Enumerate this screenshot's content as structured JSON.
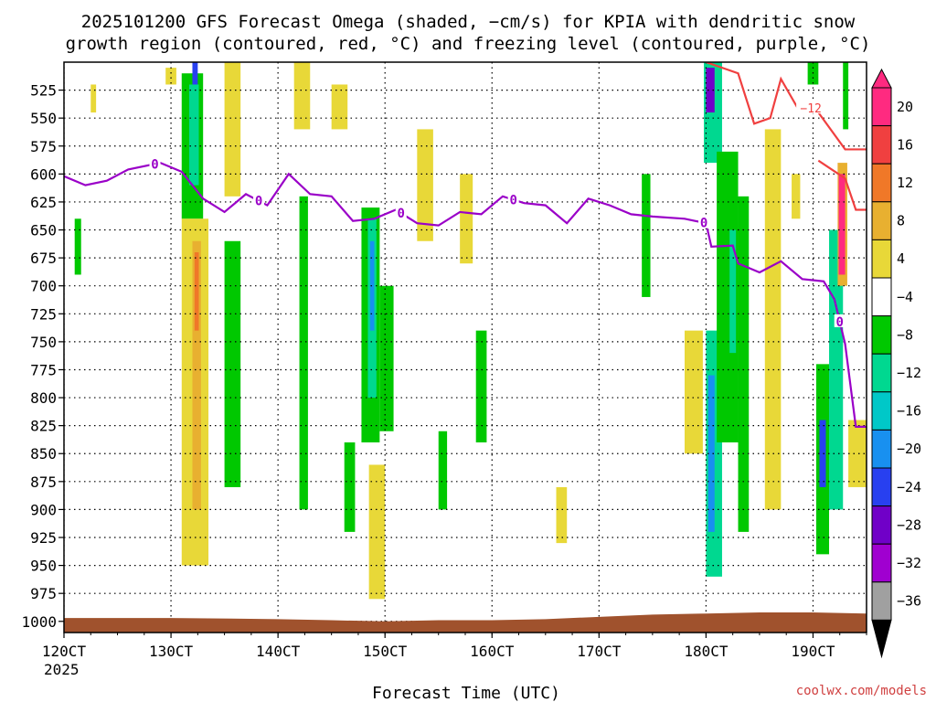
{
  "chart_data": {
    "type": "heatmap",
    "title_line1": "2025101200 GFS Forecast Omega (shaded, −cm/s) for KPIA with dendritic snow",
    "title_line2": "growth region (contoured, red, °C) and freezing level (contoured, purple, °C)",
    "xlabel": "Forecast Time (UTC)",
    "credit": "coolwx.com/models",
    "year_label": "2025",
    "x_ticks": [
      {
        "label": "120CT",
        "day": 12
      },
      {
        "label": "130CT",
        "day": 13
      },
      {
        "label": "140CT",
        "day": 14
      },
      {
        "label": "150CT",
        "day": 15
      },
      {
        "label": "160CT",
        "day": 16
      },
      {
        "label": "170CT",
        "day": 17
      },
      {
        "label": "180CT",
        "day": 18
      },
      {
        "label": "190CT",
        "day": 19
      }
    ],
    "xlim_days": [
      12,
      19.5
    ],
    "y_ticks": [
      525,
      550,
      575,
      600,
      625,
      650,
      675,
      700,
      725,
      750,
      775,
      800,
      825,
      850,
      875,
      900,
      925,
      950,
      975,
      1000
    ],
    "ylim_hpa": [
      1010,
      500
    ],
    "colorbar": {
      "labels": [
        "20",
        "16",
        "12",
        "8",
        "4",
        "−4",
        "−8",
        "−12",
        "−16",
        "−20",
        "−24",
        "−28",
        "−32",
        "−36"
      ],
      "colors": [
        "#ff2a80",
        "#f04040",
        "#f07828",
        "#e8b030",
        "#e8d838",
        "#ffffff",
        "#00c800",
        "#00d890",
        "#00c8c8",
        "#1890f0",
        "#2840f0",
        "#7000c8",
        "#a000d0",
        "#a0a0a0"
      ]
    },
    "freezing_level_label": "0",
    "freezing_level_series": [
      {
        "day": 12.0,
        "hpa": 602
      },
      {
        "day": 12.2,
        "hpa": 610
      },
      {
        "day": 12.4,
        "hpa": 606
      },
      {
        "day": 12.6,
        "hpa": 596
      },
      {
        "day": 12.9,
        "hpa": 590
      },
      {
        "day": 13.1,
        "hpa": 598
      },
      {
        "day": 13.3,
        "hpa": 622
      },
      {
        "day": 13.5,
        "hpa": 634
      },
      {
        "day": 13.7,
        "hpa": 618
      },
      {
        "day": 13.9,
        "hpa": 628
      },
      {
        "day": 14.1,
        "hpa": 600
      },
      {
        "day": 14.3,
        "hpa": 618
      },
      {
        "day": 14.5,
        "hpa": 620
      },
      {
        "day": 14.7,
        "hpa": 642
      },
      {
        "day": 14.9,
        "hpa": 640
      },
      {
        "day": 15.1,
        "hpa": 632
      },
      {
        "day": 15.3,
        "hpa": 644
      },
      {
        "day": 15.5,
        "hpa": 646
      },
      {
        "day": 15.7,
        "hpa": 634
      },
      {
        "day": 15.9,
        "hpa": 636
      },
      {
        "day": 16.1,
        "hpa": 620
      },
      {
        "day": 16.3,
        "hpa": 626
      },
      {
        "day": 16.5,
        "hpa": 628
      },
      {
        "day": 16.7,
        "hpa": 644
      },
      {
        "day": 16.9,
        "hpa": 622
      },
      {
        "day": 17.1,
        "hpa": 628
      },
      {
        "day": 17.3,
        "hpa": 636
      },
      {
        "day": 17.5,
        "hpa": 638
      },
      {
        "day": 17.8,
        "hpa": 640
      },
      {
        "day": 18.0,
        "hpa": 644
      },
      {
        "day": 18.05,
        "hpa": 665
      },
      {
        "day": 18.25,
        "hpa": 664
      },
      {
        "day": 18.3,
        "hpa": 680
      },
      {
        "day": 18.5,
        "hpa": 688
      },
      {
        "day": 18.7,
        "hpa": 678
      },
      {
        "day": 18.9,
        "hpa": 694
      },
      {
        "day": 19.1,
        "hpa": 696
      },
      {
        "day": 19.2,
        "hpa": 712
      },
      {
        "day": 19.3,
        "hpa": 752
      },
      {
        "day": 19.4,
        "hpa": 826
      },
      {
        "day": 19.5,
        "hpa": 826
      }
    ],
    "dgz_label": "−12",
    "dgz_upper_series": [
      {
        "day": 18.0,
        "hpa": 500
      },
      {
        "day": 18.3,
        "hpa": 510
      },
      {
        "day": 18.45,
        "hpa": 555
      },
      {
        "day": 18.6,
        "hpa": 550
      },
      {
        "day": 18.7,
        "hpa": 515
      },
      {
        "day": 18.85,
        "hpa": 540
      },
      {
        "day": 19.05,
        "hpa": 545
      },
      {
        "day": 19.3,
        "hpa": 578
      },
      {
        "day": 19.5,
        "hpa": 578
      }
    ],
    "dgz_lower_series": [
      {
        "day": 19.05,
        "hpa": 588
      },
      {
        "day": 19.3,
        "hpa": 604
      },
      {
        "day": 19.4,
        "hpa": 632
      },
      {
        "day": 19.5,
        "hpa": 632
      }
    ],
    "omega_cells": [
      {
        "d0": 12.1,
        "d1": 12.16,
        "p0": 640,
        "p1": 690,
        "c": "#00c800"
      },
      {
        "d0": 12.25,
        "d1": 12.3,
        "p0": 520,
        "p1": 545,
        "c": "#e8d838"
      },
      {
        "d0": 12.95,
        "d1": 13.05,
        "p0": 505,
        "p1": 520,
        "c": "#e8d838"
      },
      {
        "d0": 13.1,
        "d1": 13.3,
        "p0": 510,
        "p1": 640,
        "c": "#00c800"
      },
      {
        "d0": 13.17,
        "d1": 13.26,
        "p0": 520,
        "p1": 610,
        "c": "#00d890"
      },
      {
        "d0": 13.2,
        "d1": 13.25,
        "p0": 500,
        "p1": 520,
        "c": "#2840f0"
      },
      {
        "d0": 13.1,
        "d1": 13.35,
        "p0": 640,
        "p1": 950,
        "c": "#e8d838"
      },
      {
        "d0": 13.2,
        "d1": 13.28,
        "p0": 660,
        "p1": 900,
        "c": "#e8b030"
      },
      {
        "d0": 13.22,
        "d1": 13.26,
        "p0": 670,
        "p1": 740,
        "c": "#f07828"
      },
      {
        "d0": 13.5,
        "d1": 13.65,
        "p0": 500,
        "p1": 620,
        "c": "#e8d838"
      },
      {
        "d0": 13.5,
        "d1": 13.65,
        "p0": 660,
        "p1": 880,
        "c": "#00c800"
      },
      {
        "d0": 14.15,
        "d1": 14.3,
        "p0": 500,
        "p1": 560,
        "c": "#e8d838"
      },
      {
        "d0": 14.2,
        "d1": 14.28,
        "p0": 620,
        "p1": 900,
        "c": "#00c800"
      },
      {
        "d0": 14.5,
        "d1": 14.65,
        "p0": 520,
        "p1": 560,
        "c": "#e8d838"
      },
      {
        "d0": 14.62,
        "d1": 14.72,
        "p0": 840,
        "p1": 920,
        "c": "#00c800"
      },
      {
        "d0": 14.78,
        "d1": 14.95,
        "p0": 630,
        "p1": 840,
        "c": "#00c800"
      },
      {
        "d0": 14.84,
        "d1": 14.92,
        "p0": 640,
        "p1": 800,
        "c": "#00d890"
      },
      {
        "d0": 14.86,
        "d1": 14.9,
        "p0": 660,
        "p1": 740,
        "c": "#1890f0"
      },
      {
        "d0": 14.95,
        "d1": 15.08,
        "p0": 700,
        "p1": 830,
        "c": "#00c800"
      },
      {
        "d0": 14.85,
        "d1": 15.0,
        "p0": 860,
        "p1": 980,
        "c": "#e8d838"
      },
      {
        "d0": 15.3,
        "d1": 15.45,
        "p0": 560,
        "p1": 660,
        "c": "#e8d838"
      },
      {
        "d0": 15.5,
        "d1": 15.58,
        "p0": 830,
        "p1": 900,
        "c": "#00c800"
      },
      {
        "d0": 15.7,
        "d1": 15.82,
        "p0": 600,
        "p1": 680,
        "c": "#e8d838"
      },
      {
        "d0": 15.85,
        "d1": 15.95,
        "p0": 740,
        "p1": 840,
        "c": "#00c800"
      },
      {
        "d0": 16.6,
        "d1": 16.7,
        "p0": 880,
        "p1": 930,
        "c": "#e8d838"
      },
      {
        "d0": 17.4,
        "d1": 17.48,
        "p0": 600,
        "p1": 710,
        "c": "#00c800"
      },
      {
        "d0": 17.8,
        "d1": 17.97,
        "p0": 740,
        "p1": 850,
        "c": "#e8d838"
      },
      {
        "d0": 17.98,
        "d1": 18.15,
        "p0": 500,
        "p1": 590,
        "c": "#00d890"
      },
      {
        "d0": 18.0,
        "d1": 18.08,
        "p0": 505,
        "p1": 545,
        "c": "#7000c8"
      },
      {
        "d0": 18.0,
        "d1": 18.15,
        "p0": 740,
        "p1": 960,
        "c": "#00d890"
      },
      {
        "d0": 18.02,
        "d1": 18.08,
        "p0": 780,
        "p1": 920,
        "c": "#1890f0"
      },
      {
        "d0": 18.1,
        "d1": 18.3,
        "p0": 580,
        "p1": 840,
        "c": "#00c800"
      },
      {
        "d0": 18.22,
        "d1": 18.28,
        "p0": 650,
        "p1": 760,
        "c": "#00d890"
      },
      {
        "d0": 18.3,
        "d1": 18.4,
        "p0": 620,
        "p1": 920,
        "c": "#00c800"
      },
      {
        "d0": 18.55,
        "d1": 18.7,
        "p0": 560,
        "p1": 900,
        "c": "#e8d838"
      },
      {
        "d0": 18.8,
        "d1": 18.88,
        "p0": 600,
        "p1": 640,
        "c": "#e8d838"
      },
      {
        "d0": 18.95,
        "d1": 19.05,
        "p0": 500,
        "p1": 520,
        "c": "#00c800"
      },
      {
        "d0": 19.03,
        "d1": 19.15,
        "p0": 770,
        "p1": 940,
        "c": "#00c800"
      },
      {
        "d0": 19.06,
        "d1": 19.12,
        "p0": 820,
        "p1": 880,
        "c": "#2840f0"
      },
      {
        "d0": 19.15,
        "d1": 19.28,
        "p0": 650,
        "p1": 900,
        "c": "#00d890"
      },
      {
        "d0": 19.23,
        "d1": 19.32,
        "p0": 590,
        "p1": 700,
        "c": "#e8b030"
      },
      {
        "d0": 19.24,
        "d1": 19.3,
        "p0": 600,
        "p1": 690,
        "c": "#ff2a80"
      },
      {
        "d0": 19.28,
        "d1": 19.33,
        "p0": 500,
        "p1": 560,
        "c": "#00c800"
      },
      {
        "d0": 19.33,
        "d1": 19.5,
        "p0": 820,
        "p1": 880,
        "c": "#e8d838"
      }
    ],
    "terrain_color": "#a0522d",
    "terrain_series": [
      {
        "day": 12.0,
        "hpa": 997
      },
      {
        "day": 13.0,
        "hpa": 997
      },
      {
        "day": 14.0,
        "hpa": 998
      },
      {
        "day": 14.5,
        "hpa": 999
      },
      {
        "day": 15.0,
        "hpa": 1000
      },
      {
        "day": 15.5,
        "hpa": 999
      },
      {
        "day": 16.0,
        "hpa": 999
      },
      {
        "day": 16.5,
        "hpa": 998
      },
      {
        "day": 17.0,
        "hpa": 996
      },
      {
        "day": 17.5,
        "hpa": 994
      },
      {
        "day": 18.0,
        "hpa": 993
      },
      {
        "day": 18.5,
        "hpa": 992
      },
      {
        "day": 19.0,
        "hpa": 992
      },
      {
        "day": 19.5,
        "hpa": 993
      }
    ]
  }
}
